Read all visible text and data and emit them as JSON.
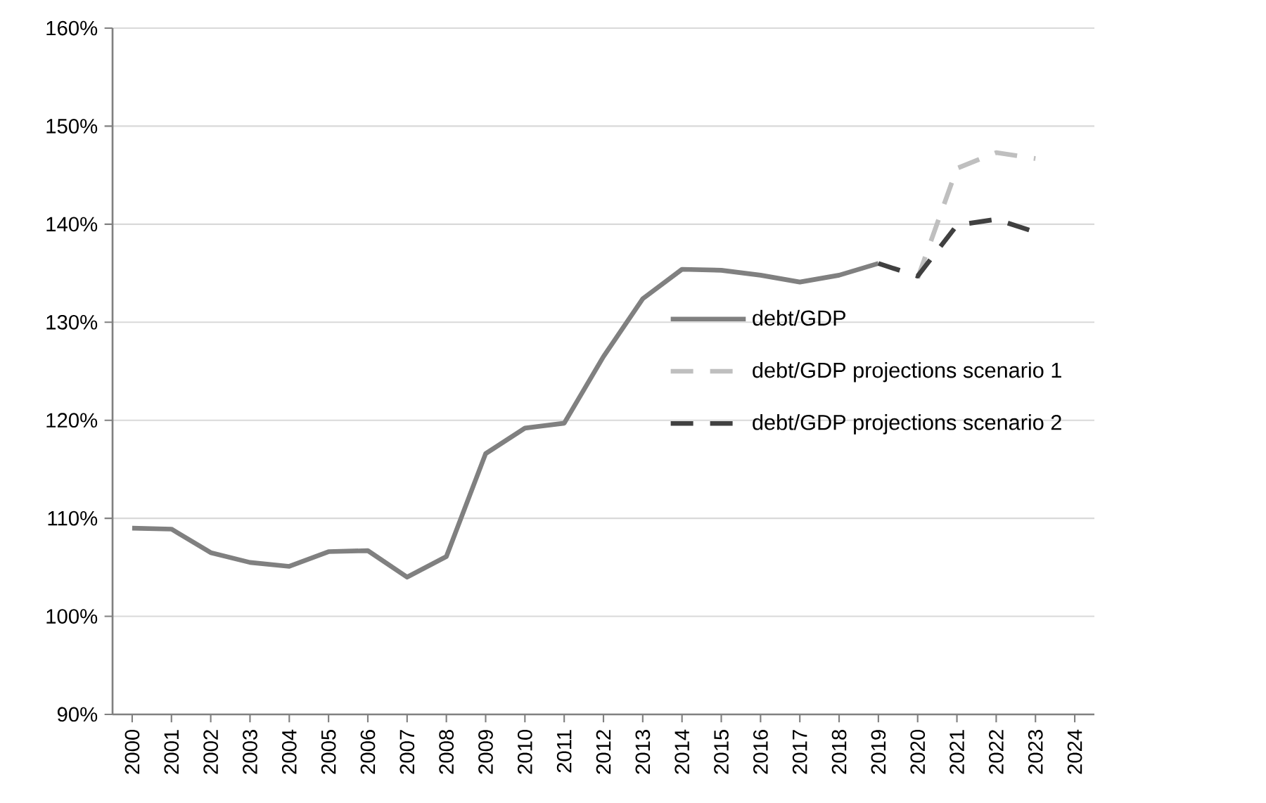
{
  "chart_data": {
    "type": "line",
    "categories": [
      "2000",
      "2001",
      "2002",
      "2003",
      "2004",
      "2005",
      "2006",
      "2007",
      "2008",
      "2009",
      "2010",
      "2011",
      "2012",
      "2013",
      "2014",
      "2015",
      "2016",
      "2017",
      "2018",
      "2019",
      "2020",
      "2021",
      "2022",
      "2023",
      "2024"
    ],
    "series": [
      {
        "name": "debt/GDP",
        "color": "#808080",
        "line_style": "solid",
        "values": [
          109.0,
          108.9,
          106.5,
          105.5,
          105.1,
          106.6,
          106.7,
          104.0,
          106.1,
          116.6,
          119.2,
          119.7,
          126.5,
          132.4,
          135.4,
          135.3,
          134.8,
          134.1,
          134.8,
          136.0,
          null,
          null,
          null,
          null,
          null
        ]
      },
      {
        "name": "debt/GDP projections scenario 1",
        "color": "#bfbfbf",
        "line_style": "dashed",
        "values": [
          null,
          null,
          null,
          null,
          null,
          null,
          null,
          null,
          null,
          null,
          null,
          null,
          null,
          null,
          null,
          null,
          null,
          null,
          null,
          null,
          134.5,
          145.7,
          147.3,
          146.7,
          null
        ]
      },
      {
        "name": "debt/GDP projections scenario 2",
        "color": "#404040",
        "line_style": "dashed",
        "values": [
          null,
          null,
          null,
          null,
          null,
          null,
          null,
          null,
          null,
          null,
          null,
          null,
          null,
          null,
          null,
          null,
          null,
          null,
          null,
          136.0,
          134.7,
          139.9,
          140.5,
          139.2,
          null
        ]
      }
    ],
    "ylim": [
      90,
      160
    ],
    "yticks": [
      {
        "value": 90,
        "label": "90%"
      },
      {
        "value": 100,
        "label": "100%"
      },
      {
        "value": 110,
        "label": "110%"
      },
      {
        "value": 120,
        "label": "120%"
      },
      {
        "value": 130,
        "label": "130%"
      },
      {
        "value": 140,
        "label": "140%"
      },
      {
        "value": 150,
        "label": "150%"
      },
      {
        "value": 160,
        "label": "160%"
      }
    ],
    "grid": "y",
    "legend": "right",
    "marker": "none"
  }
}
